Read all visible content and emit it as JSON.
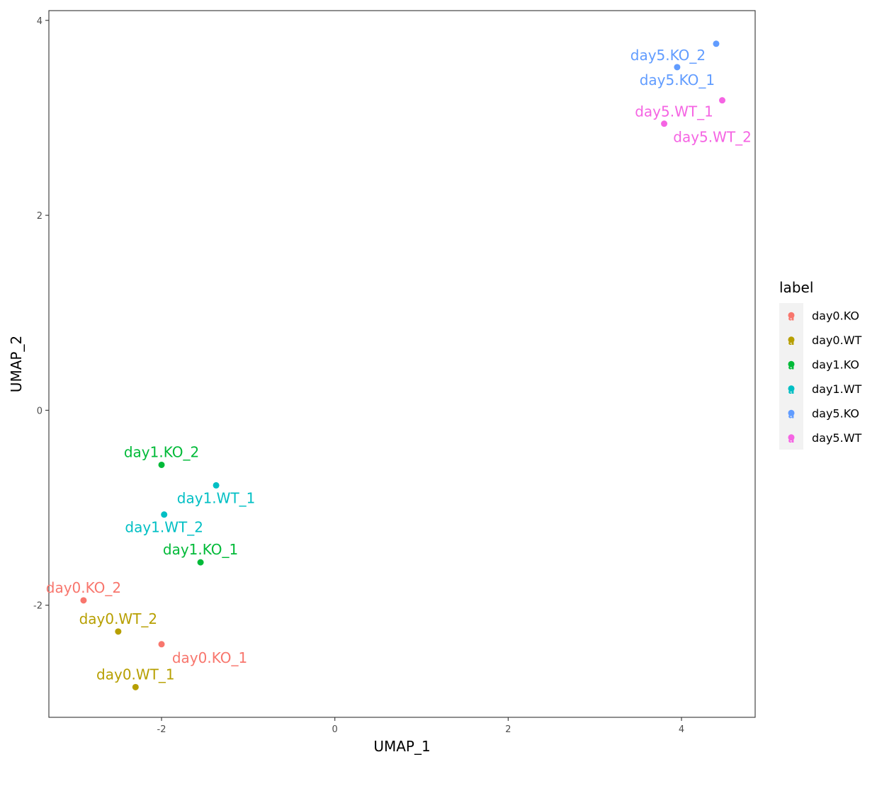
{
  "chart_data": {
    "type": "scatter",
    "xlabel": "UMAP_1",
    "ylabel": "UMAP_2",
    "xlim": [
      -3.3,
      4.85
    ],
    "ylim": [
      -3.15,
      4.1
    ],
    "x_ticks": [
      -2,
      0,
      2,
      4
    ],
    "y_ticks": [
      -2,
      0,
      2,
      4
    ],
    "x_tick_labels": [
      "-2",
      "0",
      "2",
      "4"
    ],
    "y_tick_labels": [
      "-2",
      "0",
      "2",
      "4"
    ],
    "grid": false,
    "legend": {
      "title": "label",
      "position": "right",
      "entries": [
        {
          "name": "day0.KO",
          "color": "#F8766D"
        },
        {
          "name": "day0.WT",
          "color": "#B79F00"
        },
        {
          "name": "day1.KO",
          "color": "#00BA38"
        },
        {
          "name": "day1.WT",
          "color": "#00BFC4"
        },
        {
          "name": "day5.KO",
          "color": "#619CFF"
        },
        {
          "name": "day5.WT",
          "color": "#F564E3"
        }
      ]
    },
    "points": [
      {
        "label": "day0.KO_2",
        "group": "day0.KO",
        "x": -2.9,
        "y": -1.95,
        "label_pos": "above"
      },
      {
        "label": "day0.KO_1",
        "group": "day0.KO",
        "x": -2.0,
        "y": -2.4,
        "label_pos": "below-right"
      },
      {
        "label": "day0.WT_2",
        "group": "day0.WT",
        "x": -2.5,
        "y": -2.27,
        "label_pos": "above"
      },
      {
        "label": "day0.WT_1",
        "group": "day0.WT",
        "x": -2.3,
        "y": -2.84,
        "label_pos": "above"
      },
      {
        "label": "day1.KO_2",
        "group": "day1.KO",
        "x": -2.0,
        "y": -0.56,
        "label_pos": "above"
      },
      {
        "label": "day1.KO_1",
        "group": "day1.KO",
        "x": -1.55,
        "y": -1.56,
        "label_pos": "above"
      },
      {
        "label": "day1.WT_1",
        "group": "day1.WT",
        "x": -1.37,
        "y": -0.77,
        "label_pos": "below"
      },
      {
        "label": "day1.WT_2",
        "group": "day1.WT",
        "x": -1.97,
        "y": -1.07,
        "label_pos": "below"
      },
      {
        "label": "day5.KO_2",
        "group": "day5.KO",
        "x": 4.4,
        "y": 3.76,
        "label_pos": "below-left"
      },
      {
        "label": "day5.KO_1",
        "group": "day5.KO",
        "x": 3.95,
        "y": 3.52,
        "label_pos": "below"
      },
      {
        "label": "day5.WT_1",
        "group": "day5.WT",
        "x": 4.47,
        "y": 3.18,
        "label_pos": "below-left"
      },
      {
        "label": "day5.WT_2",
        "group": "day5.WT",
        "x": 3.8,
        "y": 2.94,
        "label_pos": "below-right"
      }
    ]
  }
}
